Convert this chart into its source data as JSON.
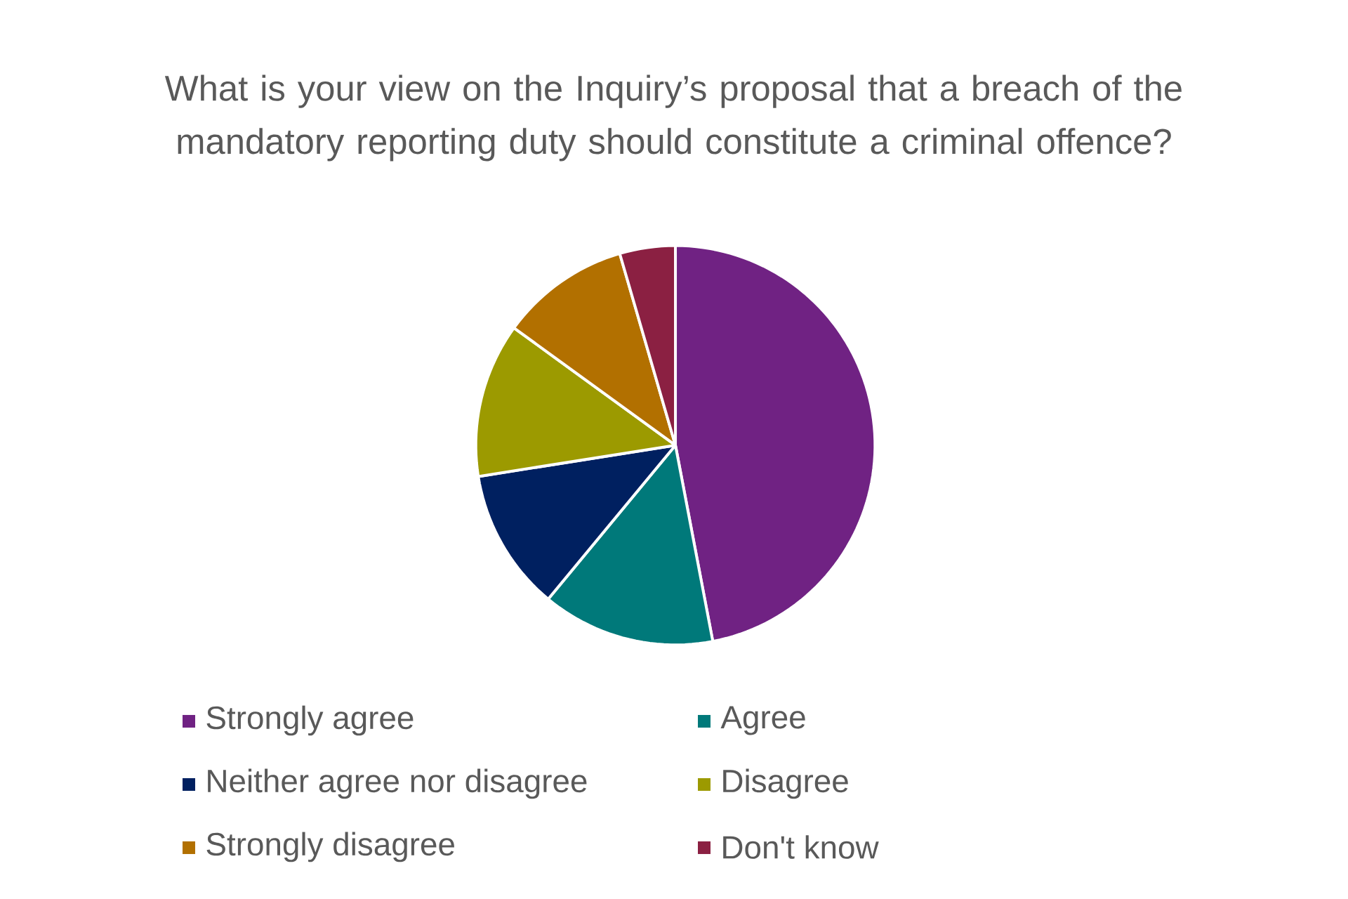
{
  "chart_data": {
    "type": "pie",
    "title": "What is your view on the Inquiry’s proposal that a breach of the mandatory reporting duty should constitute a criminal offence?",
    "categories": [
      "Strongly agree",
      "Agree",
      "Neither agree nor disagree",
      "Disagree",
      "Strongly disagree",
      "Don't know"
    ],
    "values": [
      47,
      14,
      11.5,
      12.5,
      10.5,
      4.5
    ],
    "colors": [
      "#702283",
      "#00797a",
      "#002060",
      "#9c9a00",
      "#b27000",
      "#8b2042"
    ],
    "legend": "bottom"
  }
}
